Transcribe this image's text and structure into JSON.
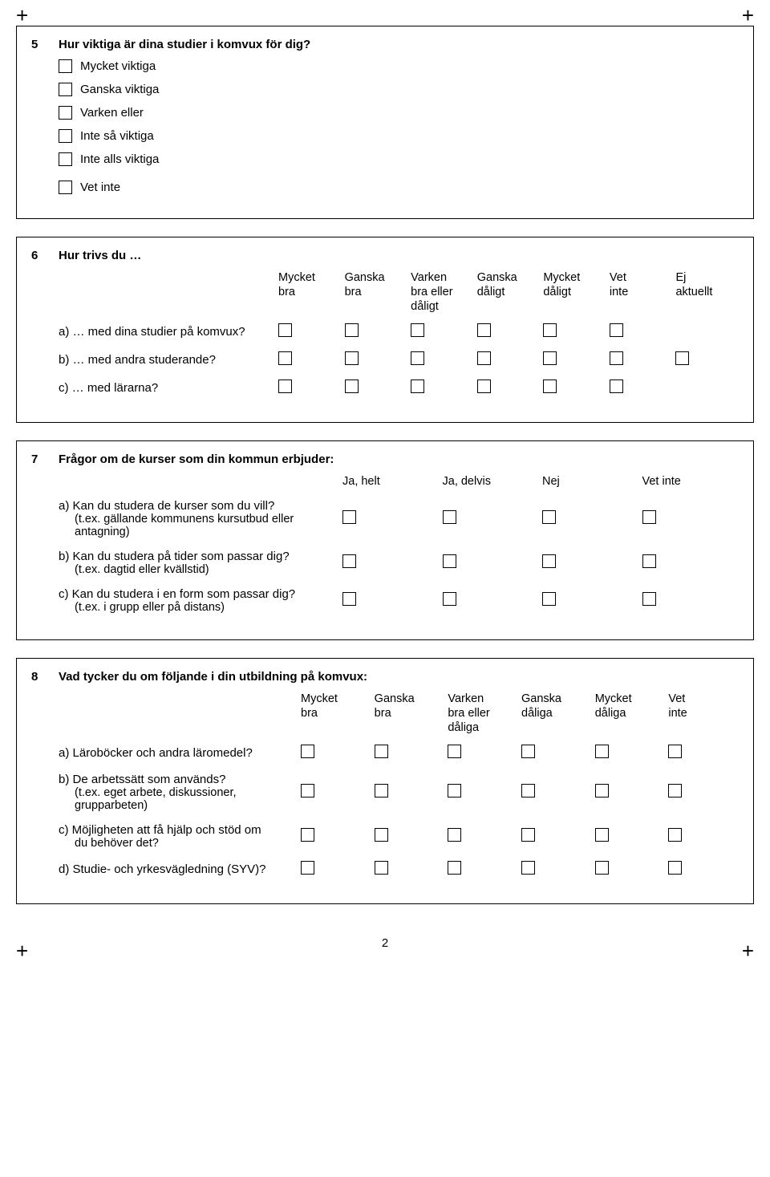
{
  "crop": "+",
  "q5": {
    "num": "5",
    "title": "Hur viktiga är dina studier i komvux för dig?",
    "opts": [
      "Mycket viktiga",
      "Ganska viktiga",
      "Varken eller",
      "Inte så viktiga",
      "Inte alls viktiga",
      "Vet inte"
    ]
  },
  "q6": {
    "num": "6",
    "title": "Hur trivs du …",
    "cols": [
      "Mycket\nbra",
      "Ganska\nbra",
      "Varken\nbra eller\ndåligt",
      "Ganska\ndåligt",
      "Mycket\ndåligt",
      "Vet\ninte",
      "Ej\naktuellt"
    ],
    "rows": [
      {
        "label": "a)  … med dina studier på komvux?",
        "cells": 6
      },
      {
        "label": "b)  … med andra studerande?",
        "cells": 7
      },
      {
        "label": "c)  … med lärarna?",
        "cells": 6
      }
    ]
  },
  "q7": {
    "num": "7",
    "title": "Frågor om de kurser som din kommun erbjuder:",
    "cols": [
      "Ja, helt",
      "Ja, delvis",
      "Nej",
      "Vet inte"
    ],
    "rows": [
      {
        "l1": "a)  Kan du studera de kurser som du vill?",
        "l2": "(t.ex. gällande kommunens kursutbud eller antagning)"
      },
      {
        "l1": "b)  Kan du studera på tider som passar dig?",
        "l2": "(t.ex. dagtid eller kvällstid)"
      },
      {
        "l1": "c)   Kan du studera i en form som passar dig?",
        "l2": "(t.ex. i grupp eller på distans)"
      }
    ]
  },
  "q8": {
    "num": "8",
    "title": "Vad tycker du om följande i din utbildning på komvux:",
    "cols": [
      "Mycket\nbra",
      "Ganska\nbra",
      "Varken\nbra eller\ndåliga",
      "Ganska\ndåliga",
      "Mycket\ndåliga",
      "Vet\ninte"
    ],
    "rows": [
      {
        "l1": "a)  Läroböcker och andra läromedel?",
        "l2": ""
      },
      {
        "l1": "b) De arbetssätt som används?",
        "l2": "(t.ex. eget arbete, diskussioner, grupparbeten)"
      },
      {
        "l1": "c)  Möjligheten att få hjälp och stöd om",
        "l2": "du behöver det?"
      },
      {
        "l1": "d)  Studie- och yrkesvägledning (SYV)?",
        "l2": ""
      }
    ]
  },
  "pagenum": "2"
}
